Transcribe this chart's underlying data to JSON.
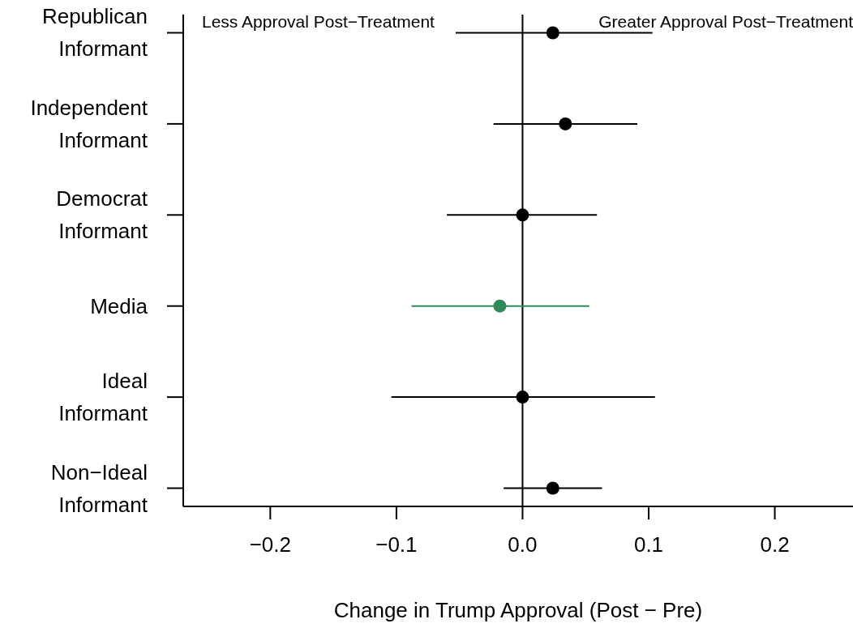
{
  "chart_data": {
    "type": "scatter",
    "orientation": "horizontal",
    "xlabel": "Change in Trump Approval (Post − Pre)",
    "categories": [
      "Republican\nInformant",
      "Independent\nInformant",
      "Democrat\nInformant",
      "Media",
      "Ideal\nInformant",
      "Non−Ideal\nInformant"
    ],
    "values": [
      0.024,
      0.034,
      0,
      -0.018,
      0,
      0.024
    ],
    "errors": [
      [
        -0.053,
        0.103
      ],
      [
        -0.023,
        0.091
      ],
      [
        -0.06,
        0.059
      ],
      [
        -0.088,
        0.053
      ],
      [
        -0.104,
        0.105
      ],
      [
        -0.015,
        0.063
      ]
    ],
    "colors": [
      "#000000",
      "#000000",
      "#000000",
      "#2e8b57",
      "#000000",
      "#000000"
    ],
    "marker": "circle",
    "xlim": [
      -0.269,
      0.262
    ],
    "xticks": [
      {
        "value": -0.2,
        "label": "−0.2"
      },
      {
        "value": -0.1,
        "label": "−0.1"
      },
      {
        "value": 0,
        "label": "0.0"
      },
      {
        "value": 0.1,
        "label": "0.1"
      },
      {
        "value": 0.2,
        "label": "0.2"
      }
    ],
    "ref_lines": [
      {
        "axis": "x",
        "value": 0,
        "color": "#000000"
      }
    ],
    "annotations": [
      "Less Approval Post−Treatment",
      "Greater Approval Post−Treatment"
    ],
    "grid": false,
    "legend": false
  }
}
